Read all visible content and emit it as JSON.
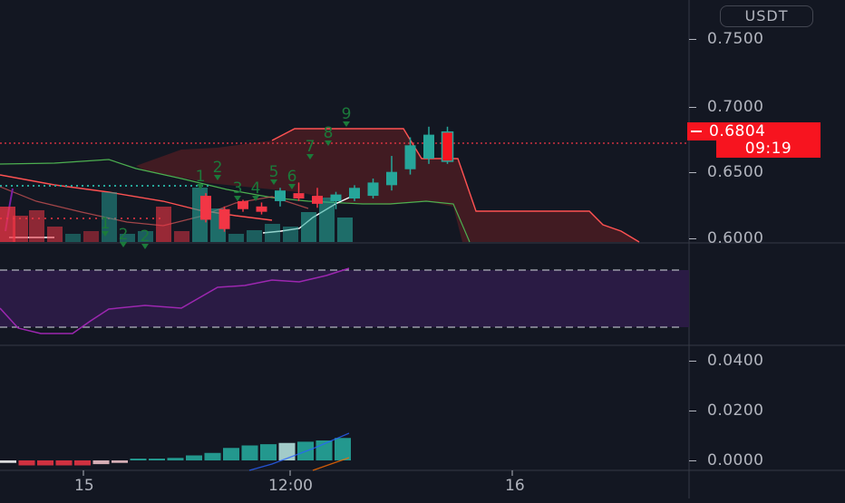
{
  "currency": "USDT",
  "price_axis": {
    "labels": [
      "0.7500",
      "0.7000",
      "0.6500",
      "0.6000"
    ],
    "last_price": "0.6804",
    "countdown": "09:19"
  },
  "macd_axis": {
    "labels": [
      "0.0400",
      "0.0200",
      "0.0000"
    ]
  },
  "time_axis": {
    "labels": [
      "15",
      "12:00",
      "16"
    ]
  },
  "td_sequential_counts": [
    "1",
    "1",
    "2",
    "2",
    "3",
    "4",
    "5",
    "6",
    "7",
    "8",
    "9"
  ],
  "colors": {
    "background": "#131722",
    "bull_candle": "#26a69a",
    "bear_candle": "#f23645",
    "last_price_badge": "#f7141f",
    "ichimoku_cloud_bear": "#4a1c22",
    "cloud_span_a": "#ff5252",
    "cloud_span_b": "#4caf50",
    "rsi_band": "#2a1b44",
    "rsi_line": "#9c27b0",
    "td_count_text": "#1b7a3a"
  },
  "chart_data": {
    "type": "candlestick",
    "price_range": [
      0.595,
      0.77
    ],
    "candles": [
      {
        "o": 0.632,
        "h": 0.634,
        "l": 0.612,
        "c": 0.614
      },
      {
        "o": 0.622,
        "h": 0.624,
        "l": 0.605,
        "c": 0.607
      },
      {
        "o": 0.628,
        "h": 0.629,
        "l": 0.62,
        "c": 0.622
      },
      {
        "o": 0.624,
        "h": 0.627,
        "l": 0.618,
        "c": 0.62
      },
      {
        "o": 0.628,
        "h": 0.638,
        "l": 0.624,
        "c": 0.636
      },
      {
        "o": 0.634,
        "h": 0.642,
        "l": 0.628,
        "c": 0.63
      },
      {
        "o": 0.632,
        "h": 0.638,
        "l": 0.623,
        "c": 0.626
      },
      {
        "o": 0.628,
        "h": 0.635,
        "l": 0.622,
        "c": 0.633
      },
      {
        "o": 0.63,
        "h": 0.64,
        "l": 0.628,
        "c": 0.638
      },
      {
        "o": 0.632,
        "h": 0.645,
        "l": 0.63,
        "c": 0.642
      },
      {
        "o": 0.64,
        "h": 0.662,
        "l": 0.636,
        "c": 0.65
      },
      {
        "o": 0.652,
        "h": 0.676,
        "l": 0.648,
        "c": 0.67
      },
      {
        "o": 0.66,
        "h": 0.684,
        "l": 0.656,
        "c": 0.678
      },
      {
        "o": 0.658,
        "h": 0.684,
        "l": 0.656,
        "c": 0.68
      }
    ],
    "macd_histogram": [
      -0.001,
      -0.002,
      -0.002,
      -0.002,
      -0.002,
      -0.0015,
      -0.001,
      0.0,
      0.0005,
      0.001,
      0.002,
      0.003,
      0.005,
      0.006,
      0.0065,
      0.007,
      0.0075,
      0.008,
      0.009
    ],
    "macd_range": [
      -0.004,
      0.05
    ]
  }
}
